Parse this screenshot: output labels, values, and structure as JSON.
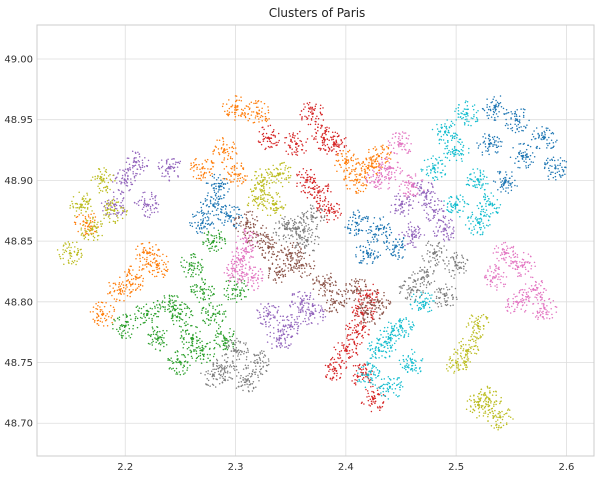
{
  "chart_data": {
    "type": "scatter",
    "title": "Clusters of Paris",
    "xlabel": "",
    "ylabel": "",
    "xlim": [
      2.12,
      2.625
    ],
    "ylim": [
      48.673,
      49.028
    ],
    "xticks": [
      2.2,
      2.3,
      2.4,
      2.5,
      2.6
    ],
    "xtick_labels": [
      "2.2",
      "2.3",
      "2.4",
      "2.5",
      "2.6"
    ],
    "yticks": [
      48.7,
      48.75,
      48.8,
      48.85,
      48.9,
      48.95,
      49.0
    ],
    "ytick_labels": [
      "48.70",
      "48.75",
      "48.80",
      "48.85",
      "48.90",
      "48.95",
      "49.00"
    ],
    "grid": true,
    "legend": "none",
    "clusters": [
      {
        "color": "#d62728",
        "points": [
          [
            2.37,
            48.955
          ],
          [
            2.355,
            48.93
          ],
          [
            2.38,
            48.935
          ],
          [
            2.39,
            48.93
          ],
          [
            2.365,
            48.9
          ],
          [
            2.375,
            48.89
          ],
          [
            2.385,
            48.875
          ],
          [
            2.33,
            48.935
          ],
          [
            2.415,
            48.79
          ],
          [
            2.41,
            48.775
          ],
          [
            2.42,
            48.805
          ],
          [
            2.4,
            48.76
          ],
          [
            2.415,
            48.74
          ],
          [
            2.39,
            48.745
          ],
          [
            2.425,
            48.72
          ]
        ]
      },
      {
        "color": "#ff7f0e",
        "points": [
          [
            2.29,
            48.925
          ],
          [
            2.27,
            48.91
          ],
          [
            2.3,
            48.905
          ],
          [
            2.3,
            48.96
          ],
          [
            2.32,
            48.955
          ],
          [
            2.4,
            48.915
          ],
          [
            2.41,
            48.9
          ],
          [
            2.42,
            48.91
          ],
          [
            2.43,
            48.92
          ],
          [
            2.22,
            48.84
          ],
          [
            2.21,
            48.82
          ],
          [
            2.23,
            48.83
          ],
          [
            2.195,
            48.81
          ],
          [
            2.165,
            48.865
          ],
          [
            2.18,
            48.79
          ]
        ]
      },
      {
        "color": "#9467bd",
        "points": [
          [
            2.2,
            48.9
          ],
          [
            2.22,
            48.88
          ],
          [
            2.24,
            48.91
          ],
          [
            2.19,
            48.88
          ],
          [
            2.21,
            48.915
          ],
          [
            2.47,
            48.89
          ],
          [
            2.48,
            48.875
          ],
          [
            2.46,
            48.855
          ],
          [
            2.45,
            48.88
          ],
          [
            2.49,
            48.86
          ],
          [
            2.33,
            48.79
          ],
          [
            2.35,
            48.78
          ],
          [
            2.36,
            48.8
          ],
          [
            2.34,
            48.77
          ],
          [
            2.37,
            48.79
          ]
        ]
      },
      {
        "color": "#1f77b4",
        "points": [
          [
            2.28,
            48.88
          ],
          [
            2.27,
            48.865
          ],
          [
            2.295,
            48.87
          ],
          [
            2.285,
            48.895
          ],
          [
            2.43,
            48.86
          ],
          [
            2.42,
            48.84
          ],
          [
            2.445,
            48.845
          ],
          [
            2.41,
            48.865
          ],
          [
            2.53,
            48.93
          ],
          [
            2.56,
            48.92
          ],
          [
            2.555,
            48.95
          ],
          [
            2.58,
            48.935
          ],
          [
            2.535,
            48.96
          ],
          [
            2.59,
            48.91
          ],
          [
            2.545,
            48.9
          ]
        ]
      },
      {
        "color": "#bcbd22",
        "points": [
          [
            2.32,
            48.885
          ],
          [
            2.335,
            48.88
          ],
          [
            2.325,
            48.9
          ],
          [
            2.34,
            48.905
          ],
          [
            2.16,
            48.88
          ],
          [
            2.18,
            48.9
          ],
          [
            2.17,
            48.86
          ],
          [
            2.19,
            48.875
          ],
          [
            2.15,
            48.84
          ],
          [
            2.52,
            48.78
          ],
          [
            2.51,
            48.76
          ],
          [
            2.5,
            48.75
          ],
          [
            2.53,
            48.72
          ],
          [
            2.54,
            48.705
          ],
          [
            2.52,
            48.715
          ]
        ]
      },
      {
        "color": "#8c564b",
        "points": [
          [
            2.33,
            48.845
          ],
          [
            2.35,
            48.84
          ],
          [
            2.32,
            48.855
          ],
          [
            2.34,
            48.825
          ],
          [
            2.36,
            48.83
          ],
          [
            2.31,
            48.865
          ],
          [
            2.39,
            48.8
          ],
          [
            2.41,
            48.81
          ],
          [
            2.43,
            48.8
          ],
          [
            2.42,
            48.79
          ],
          [
            2.38,
            48.815
          ]
        ]
      },
      {
        "color": "#2ca02c",
        "points": [
          [
            2.28,
            48.85
          ],
          [
            2.26,
            48.83
          ],
          [
            2.27,
            48.81
          ],
          [
            2.25,
            48.79
          ],
          [
            2.24,
            48.8
          ],
          [
            2.23,
            48.77
          ],
          [
            2.26,
            48.77
          ],
          [
            2.28,
            48.79
          ],
          [
            2.22,
            48.79
          ],
          [
            2.2,
            48.78
          ],
          [
            2.29,
            48.77
          ],
          [
            2.3,
            48.81
          ],
          [
            2.27,
            48.76
          ],
          [
            2.25,
            48.75
          ]
        ]
      },
      {
        "color": "#e377c2",
        "points": [
          [
            2.305,
            48.835
          ],
          [
            2.3,
            48.825
          ],
          [
            2.315,
            48.82
          ],
          [
            2.31,
            48.85
          ],
          [
            2.44,
            48.91
          ],
          [
            2.45,
            48.93
          ],
          [
            2.46,
            48.895
          ],
          [
            2.43,
            48.9
          ],
          [
            2.545,
            48.84
          ],
          [
            2.56,
            48.83
          ],
          [
            2.57,
            48.81
          ],
          [
            2.555,
            48.8
          ],
          [
            2.535,
            48.82
          ],
          [
            2.58,
            48.795
          ]
        ]
      },
      {
        "color": "#7f7f7f",
        "points": [
          [
            2.355,
            48.86
          ],
          [
            2.365,
            48.85
          ],
          [
            2.37,
            48.87
          ],
          [
            2.345,
            48.86
          ],
          [
            2.48,
            48.84
          ],
          [
            2.47,
            48.82
          ],
          [
            2.49,
            48.805
          ],
          [
            2.5,
            48.83
          ],
          [
            2.46,
            48.81
          ],
          [
            2.29,
            48.745
          ],
          [
            2.3,
            48.76
          ],
          [
            2.31,
            48.735
          ],
          [
            2.28,
            48.74
          ],
          [
            2.32,
            48.75
          ]
        ]
      },
      {
        "color": "#17becf",
        "points": [
          [
            2.49,
            48.94
          ],
          [
            2.5,
            48.925
          ],
          [
            2.48,
            48.91
          ],
          [
            2.51,
            48.955
          ],
          [
            2.52,
            48.9
          ],
          [
            2.5,
            48.88
          ],
          [
            2.52,
            48.865
          ],
          [
            2.53,
            48.88
          ],
          [
            2.44,
            48.77
          ],
          [
            2.45,
            48.78
          ],
          [
            2.43,
            48.76
          ],
          [
            2.46,
            48.75
          ],
          [
            2.44,
            48.73
          ],
          [
            2.42,
            48.74
          ],
          [
            2.47,
            48.8
          ]
        ]
      }
    ]
  }
}
